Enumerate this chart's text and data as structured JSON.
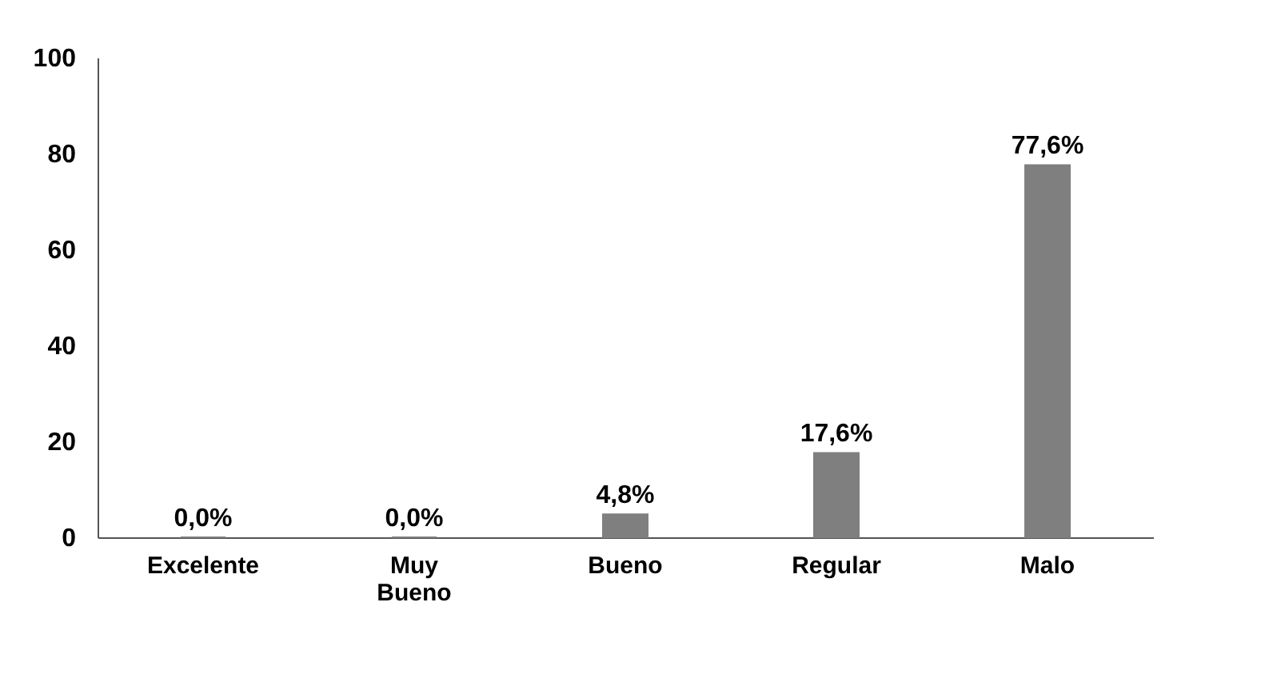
{
  "chart_data": {
    "type": "bar",
    "categories": [
      "Excelente",
      "Muy Bueno",
      "Bueno",
      "Regular",
      "Malo"
    ],
    "values": [
      0,
      0,
      4.8,
      17.6,
      77.6
    ],
    "value_labels": [
      "0,0%",
      "0,0%",
      "4,8%",
      "17,6%",
      "77,6%"
    ],
    "color": "#7f7f7f",
    "ylim": [
      0,
      100
    ],
    "yticks": [
      0,
      20,
      40,
      60,
      80,
      100
    ],
    "grid": false
  }
}
